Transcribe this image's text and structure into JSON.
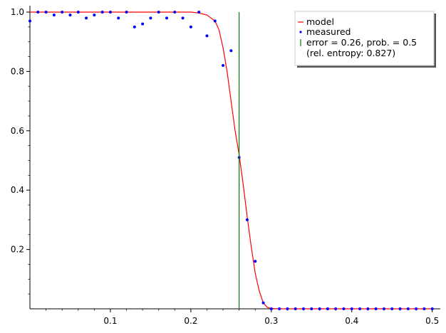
{
  "chart_data": {
    "type": "line",
    "xlim": [
      0,
      0.51
    ],
    "ylim": [
      0,
      1.02
    ],
    "x_ticks": [
      {
        "value": 0.1,
        "label": "0.1"
      },
      {
        "value": 0.2,
        "label": "0.2"
      },
      {
        "value": 0.3,
        "label": "0.3"
      },
      {
        "value": 0.4,
        "label": "0.4"
      },
      {
        "value": 0.5,
        "label": "0.5"
      }
    ],
    "y_ticks": [
      {
        "value": 0.2,
        "label": "0.2"
      },
      {
        "value": 0.4,
        "label": "0.4"
      },
      {
        "value": 0.6,
        "label": "0.6"
      },
      {
        "value": 0.8,
        "label": "0.8"
      },
      {
        "value": 1.0,
        "label": "1.0"
      }
    ],
    "grid": false,
    "legend_position": "top-right",
    "model": {
      "name": "model",
      "color": "#ff0000",
      "x": [
        0,
        0.02,
        0.04,
        0.06,
        0.08,
        0.1,
        0.12,
        0.14,
        0.16,
        0.18,
        0.2,
        0.21,
        0.22,
        0.23,
        0.235,
        0.24,
        0.245,
        0.25,
        0.255,
        0.26,
        0.265,
        0.27,
        0.275,
        0.28,
        0.285,
        0.29,
        0.295,
        0.3,
        0.31,
        0.32,
        0.35,
        0.4,
        0.45,
        0.5
      ],
      "y": [
        1,
        1,
        1,
        1,
        1,
        1,
        1,
        1,
        1,
        1,
        1,
        0.997,
        0.99,
        0.97,
        0.94,
        0.88,
        0.8,
        0.7,
        0.6,
        0.52,
        0.42,
        0.31,
        0.21,
        0.12,
        0.06,
        0.02,
        0.005,
        0.001,
        0,
        0,
        0,
        0,
        0,
        0
      ]
    },
    "measured": {
      "name": "measured",
      "color": "#0000ff",
      "x": [
        0,
        0.01,
        0.02,
        0.03,
        0.04,
        0.05,
        0.06,
        0.07,
        0.08,
        0.09,
        0.1,
        0.11,
        0.12,
        0.13,
        0.14,
        0.15,
        0.16,
        0.17,
        0.18,
        0.19,
        0.2,
        0.21,
        0.22,
        0.23,
        0.24,
        0.25,
        0.26,
        0.27,
        0.28,
        0.29,
        0.3,
        0.31,
        0.32,
        0.33,
        0.34,
        0.35,
        0.36,
        0.37,
        0.38,
        0.39,
        0.4,
        0.41,
        0.42,
        0.43,
        0.44,
        0.45,
        0.46,
        0.47,
        0.48,
        0.49,
        0.5
      ],
      "y": [
        0.97,
        1.0,
        1.0,
        0.99,
        1.0,
        0.99,
        1.0,
        0.98,
        0.99,
        1.0,
        1.0,
        0.98,
        1.0,
        0.95,
        0.96,
        0.98,
        1.0,
        0.98,
        1.0,
        0.98,
        0.95,
        1.0,
        0.92,
        0.97,
        0.82,
        0.87,
        0.51,
        0.3,
        0.16,
        0.02,
        0,
        0,
        0,
        0,
        0,
        0,
        0,
        0,
        0,
        0,
        0,
        0,
        0,
        0,
        0,
        0,
        0,
        0,
        0,
        0,
        0
      ]
    },
    "threshold": {
      "x": 0.26,
      "color": "#008000",
      "label_line1": "error = 0.26, prob. = 0.5",
      "label_line2": "(rel. entropy: 0.827)"
    }
  }
}
